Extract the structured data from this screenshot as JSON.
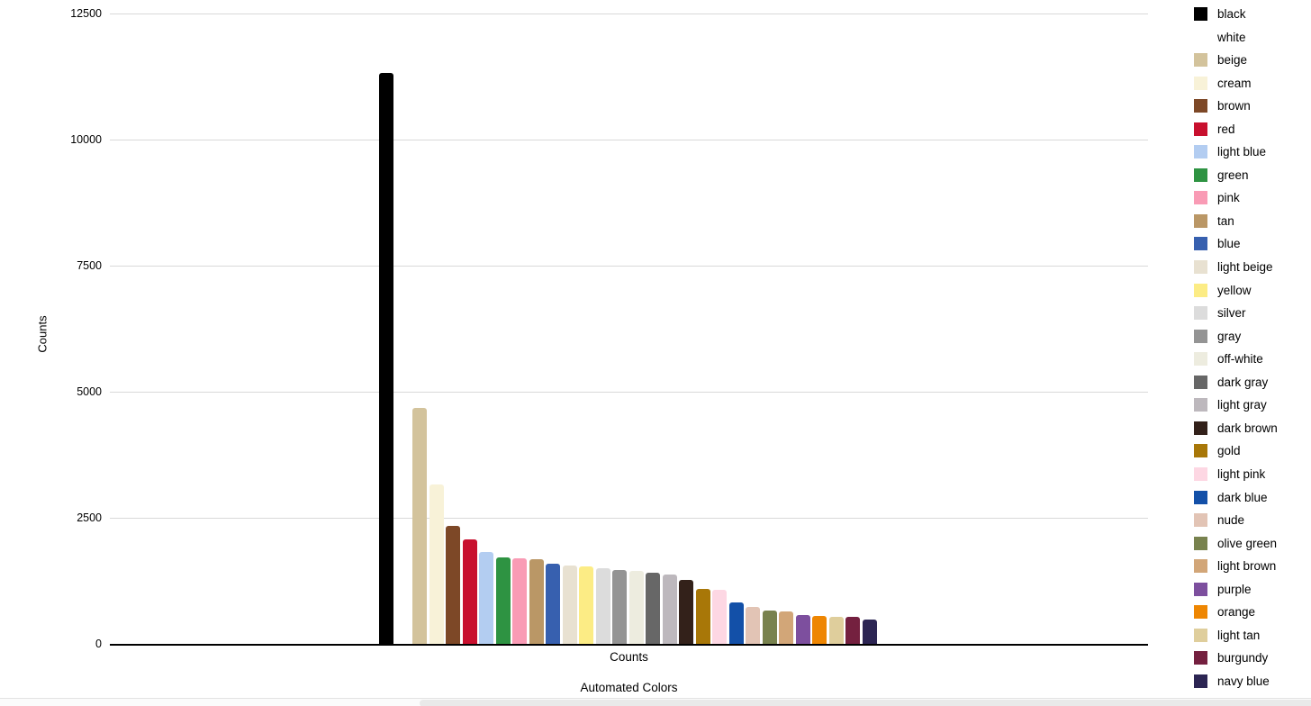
{
  "chart_data": {
    "type": "bar",
    "title": "Automated Colors",
    "xlabel": "Counts",
    "ylabel": "Counts",
    "ylim": [
      0,
      12500
    ],
    "yticks": [
      0,
      2500,
      5000,
      7500,
      10000,
      12500
    ],
    "grid": true,
    "legend_position": "right",
    "note": "white bar is invisible (white fill on white background); its value is not readable",
    "bars": [
      {
        "label": "black",
        "color": "#000000",
        "value": 11320
      },
      {
        "label": "white",
        "color": "#ffffff",
        "value": null
      },
      {
        "label": "beige",
        "color": "#d3c39c",
        "value": 4680
      },
      {
        "label": "cream",
        "color": "#f8f2d8",
        "value": 3160
      },
      {
        "label": "brown",
        "color": "#7d4827",
        "value": 2340
      },
      {
        "label": "red",
        "color": "#c8102e",
        "value": 2070
      },
      {
        "label": "light blue",
        "color": "#b3cdf1",
        "value": 1820
      },
      {
        "label": "green",
        "color": "#2e9342",
        "value": 1720
      },
      {
        "label": "pink",
        "color": "#f99bb5",
        "value": 1700
      },
      {
        "label": "tan",
        "color": "#ba9766",
        "value": 1680
      },
      {
        "label": "blue",
        "color": "#3760af",
        "value": 1590
      },
      {
        "label": "light beige",
        "color": "#e8e1d1",
        "value": 1555
      },
      {
        "label": "yellow",
        "color": "#fcec85",
        "value": 1540
      },
      {
        "label": "silver",
        "color": "#dcdcdc",
        "value": 1500
      },
      {
        "label": "gray",
        "color": "#949494",
        "value": 1465
      },
      {
        "label": "off-white",
        "color": "#edecdf",
        "value": 1445
      },
      {
        "label": "dark gray",
        "color": "#676767",
        "value": 1410
      },
      {
        "label": "light gray",
        "color": "#bdb8bd",
        "value": 1375
      },
      {
        "label": "dark brown",
        "color": "#33211a",
        "value": 1270
      },
      {
        "label": "gold",
        "color": "#a87708",
        "value": 1090
      },
      {
        "label": "light pink",
        "color": "#fdd7e3",
        "value": 1070
      },
      {
        "label": "dark blue",
        "color": "#1350a8",
        "value": 820
      },
      {
        "label": "nude",
        "color": "#e2c4b5",
        "value": 730
      },
      {
        "label": "olive green",
        "color": "#78824e",
        "value": 660
      },
      {
        "label": "light brown",
        "color": "#d2a678",
        "value": 640
      },
      {
        "label": "purple",
        "color": "#7d4f9e",
        "value": 570
      },
      {
        "label": "orange",
        "color": "#ee8602",
        "value": 545
      },
      {
        "label": "light tan",
        "color": "#dfce9c",
        "value": 535
      },
      {
        "label": "burgundy",
        "color": "#74203f",
        "value": 530
      },
      {
        "label": "navy blue",
        "color": "#2c2553",
        "value": 485
      }
    ]
  }
}
